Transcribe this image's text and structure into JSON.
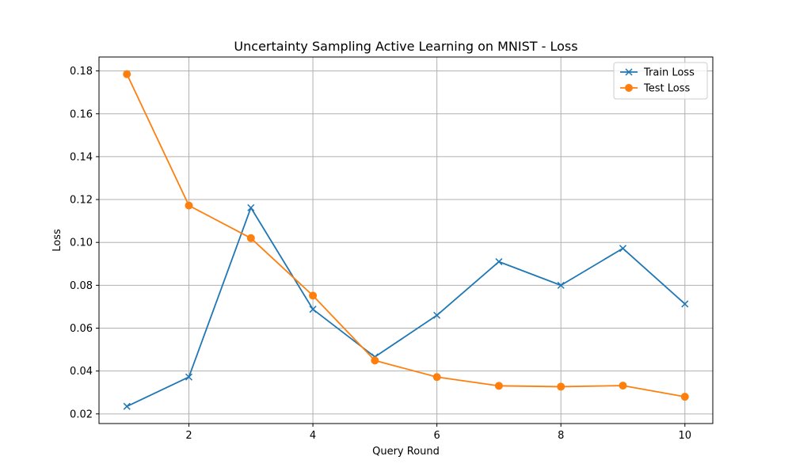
{
  "chart_data": {
    "type": "line",
    "title": "Uncertainty Sampling Active Learning on MNIST - Loss",
    "xlabel": "Query Round",
    "ylabel": "Loss",
    "xlim": [
      0.55,
      10.45
    ],
    "ylim": [
      0.0155,
      0.1865
    ],
    "x_ticks": [
      2,
      4,
      6,
      8,
      10
    ],
    "x_tick_labels": [
      "2",
      "4",
      "6",
      "8",
      "10"
    ],
    "y_ticks": [
      0.02,
      0.04,
      0.06,
      0.08,
      0.1,
      0.12,
      0.14,
      0.16,
      0.18
    ],
    "y_tick_labels": [
      "0.02",
      "0.04",
      "0.06",
      "0.08",
      "0.10",
      "0.12",
      "0.14",
      "0.16",
      "0.18"
    ],
    "grid": true,
    "legend_position": "top-right",
    "x": [
      1,
      2,
      3,
      4,
      5,
      6,
      7,
      8,
      9,
      10
    ],
    "series": [
      {
        "name": "Train Loss",
        "color": "#1f77b4",
        "marker": "x",
        "values": [
          0.0235,
          0.0372,
          0.1162,
          0.0688,
          0.0466,
          0.066,
          0.091,
          0.08,
          0.0972,
          0.0713
        ]
      },
      {
        "name": "Test Loss",
        "color": "#ff7f0e",
        "marker": "o",
        "values": [
          0.1785,
          0.1172,
          0.102,
          0.0752,
          0.0449,
          0.0372,
          0.0331,
          0.0327,
          0.0332,
          0.028
        ]
      }
    ]
  }
}
